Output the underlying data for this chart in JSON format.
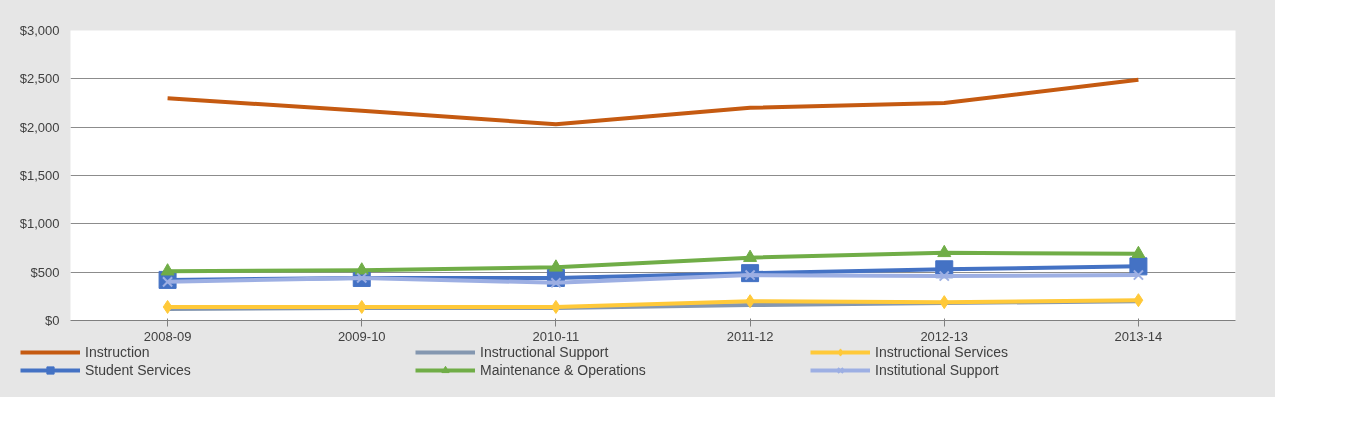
{
  "chart_data": {
    "type": "line",
    "categories": [
      "2008-09",
      "2009-10",
      "2010-11",
      "2011-12",
      "2012-13",
      "2013-14"
    ],
    "ylim": [
      0,
      3000
    ],
    "yticks": [
      {
        "value": 0,
        "label": "$0"
      },
      {
        "value": 500,
        "label": "$500"
      },
      {
        "value": 1000,
        "label": "$1,000"
      },
      {
        "value": 1500,
        "label": "$1,500"
      },
      {
        "value": 2000,
        "label": "$2,000"
      },
      {
        "value": 2500,
        "label": "$2,500"
      },
      {
        "value": 3000,
        "label": "$3,000"
      }
    ],
    "grid": "y",
    "legend": "bottom",
    "series": [
      {
        "name": "Instruction",
        "color": "#c55a11",
        "marker": "none",
        "values": [
          2300,
          2170,
          2030,
          2200,
          2250,
          2490
        ]
      },
      {
        "name": "Instructional Support",
        "color": "#8497b0",
        "marker": "none",
        "values": [
          120,
          130,
          130,
          160,
          180,
          200
        ]
      },
      {
        "name": "Instructional Services",
        "color": "#ffc939",
        "marker": "diamond",
        "values": [
          140,
          140,
          140,
          200,
          190,
          210
        ]
      },
      {
        "name": "Student Services",
        "color": "#4472c4",
        "marker": "square",
        "values": [
          420,
          440,
          440,
          490,
          530,
          560
        ]
      },
      {
        "name": "Maintenance & Operations",
        "color": "#70ad47",
        "marker": "triangle",
        "values": [
          510,
          520,
          550,
          650,
          700,
          690
        ]
      },
      {
        "name": "Institutional Support",
        "color": "#9dafe3",
        "marker": "cross",
        "values": [
          400,
          440,
          390,
          470,
          460,
          470
        ]
      }
    ]
  }
}
